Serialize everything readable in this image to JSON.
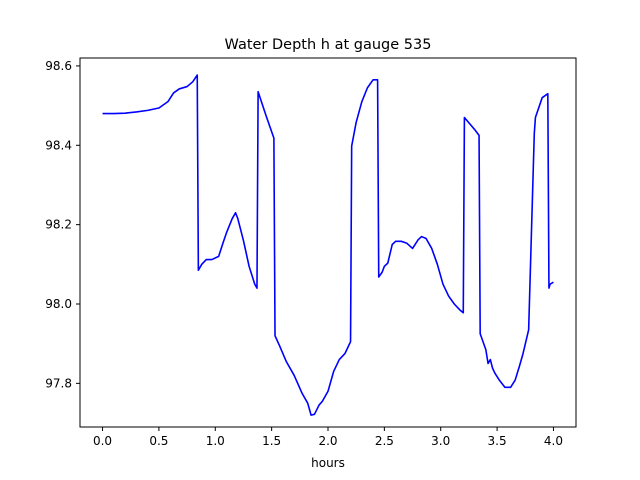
{
  "chart_data": {
    "type": "line",
    "title": "Water Depth h at gauge 535",
    "xlabel": "hours",
    "ylabel": "",
    "xlim": [
      -0.2,
      4.2
    ],
    "ylim": [
      97.69,
      98.62
    ],
    "xticks": [
      0.0,
      0.5,
      1.0,
      1.5,
      2.0,
      2.5,
      3.0,
      3.5,
      4.0
    ],
    "xtick_labels": [
      "0.0",
      "0.5",
      "1.0",
      "1.5",
      "2.0",
      "2.5",
      "3.0",
      "3.5",
      "4.0"
    ],
    "yticks": [
      97.8,
      98.0,
      98.2,
      98.4,
      98.6
    ],
    "ytick_labels": [
      "97.8",
      "98.0",
      "98.2",
      "98.4",
      "98.6"
    ],
    "grid": false,
    "series": [
      {
        "color": "#0000ff",
        "x": [
          0.0,
          0.1,
          0.2,
          0.3,
          0.4,
          0.5,
          0.58,
          0.63,
          0.68,
          0.75,
          0.8,
          0.84,
          0.85,
          0.88,
          0.92,
          0.97,
          1.03,
          1.07,
          1.1,
          1.15,
          1.18,
          1.2,
          1.25,
          1.3,
          1.35,
          1.37,
          1.38,
          1.45,
          1.52,
          1.53,
          1.57,
          1.63,
          1.7,
          1.77,
          1.82,
          1.85,
          1.88,
          1.92,
          1.95,
          2.0,
          2.05,
          2.1,
          2.15,
          2.2,
          2.21,
          2.25,
          2.3,
          2.35,
          2.4,
          2.44,
          2.45,
          2.48,
          2.5,
          2.53,
          2.57,
          2.6,
          2.65,
          2.7,
          2.75,
          2.8,
          2.83,
          2.87,
          2.92,
          2.97,
          3.02,
          3.07,
          3.12,
          3.17,
          3.2,
          3.21,
          3.3,
          3.34,
          3.35,
          3.4,
          3.42,
          3.44,
          3.46,
          3.48,
          3.52,
          3.57,
          3.62,
          3.66,
          3.7,
          3.73,
          3.78,
          3.83,
          3.84,
          3.9,
          3.95,
          3.96,
          3.97,
          4.0
        ],
        "y": [
          98.48,
          98.48,
          98.481,
          98.484,
          98.488,
          98.494,
          98.51,
          98.532,
          98.542,
          98.548,
          98.56,
          98.577,
          98.085,
          98.1,
          98.112,
          98.112,
          98.12,
          98.155,
          98.18,
          98.215,
          98.23,
          98.215,
          98.16,
          98.095,
          98.05,
          98.04,
          98.535,
          98.475,
          98.418,
          97.92,
          97.895,
          97.855,
          97.82,
          97.775,
          97.75,
          97.72,
          97.722,
          97.745,
          97.755,
          97.78,
          97.83,
          97.86,
          97.875,
          97.905,
          98.398,
          98.458,
          98.51,
          98.545,
          98.565,
          98.565,
          98.068,
          98.08,
          98.095,
          98.103,
          98.15,
          98.158,
          98.158,
          98.153,
          98.14,
          98.162,
          98.17,
          98.165,
          98.14,
          98.1,
          98.05,
          98.02,
          98.0,
          97.985,
          97.978,
          98.47,
          98.44,
          98.425,
          97.925,
          97.885,
          97.85,
          97.86,
          97.838,
          97.826,
          97.808,
          97.79,
          97.79,
          97.808,
          97.845,
          97.875,
          97.935,
          98.43,
          98.47,
          98.52,
          98.53,
          98.04,
          98.05,
          98.055
        ]
      }
    ]
  }
}
